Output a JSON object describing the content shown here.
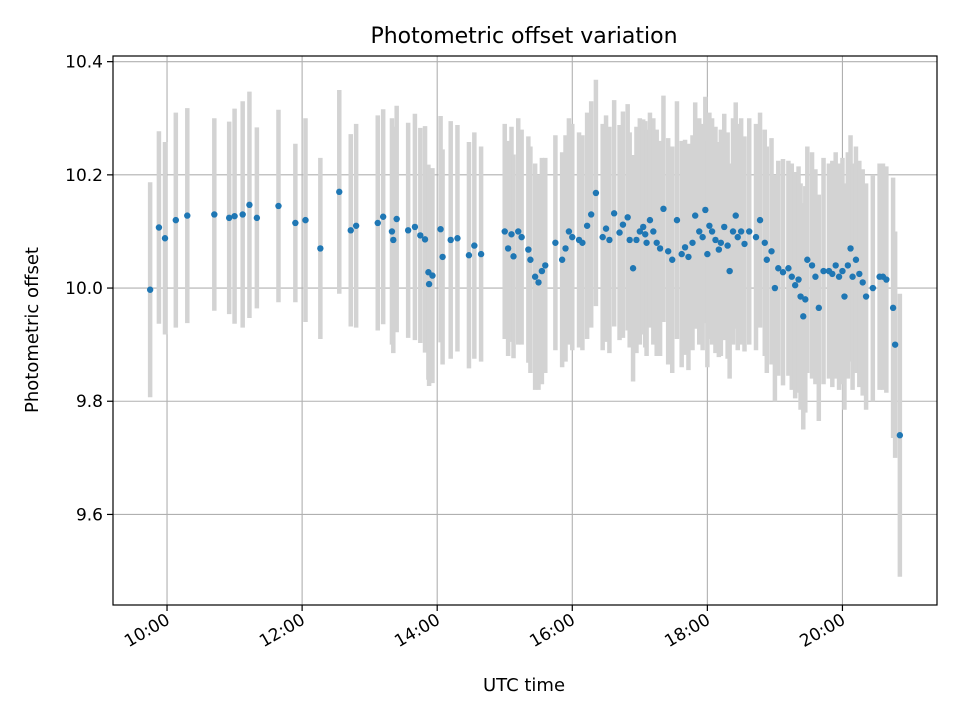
{
  "chart_data": {
    "type": "scatter",
    "title": "Photometric offset variation",
    "xlabel": "UTC time",
    "ylabel": "Photometric offset",
    "x_unit": "hours UTC",
    "xlim": [
      9.2,
      21.4
    ],
    "ylim": [
      9.44,
      10.41
    ],
    "grid": true,
    "legend": "none",
    "x_ticks": [
      {
        "value": 10,
        "label": "10:00"
      },
      {
        "value": 12,
        "label": "12:00"
      },
      {
        "value": 14,
        "label": "14:00"
      },
      {
        "value": 16,
        "label": "16:00"
      },
      {
        "value": 18,
        "label": "18:00"
      },
      {
        "value": 20,
        "label": "20:00"
      }
    ],
    "y_ticks": [
      {
        "value": 9.6,
        "label": "9.6"
      },
      {
        "value": 9.8,
        "label": "9.8"
      },
      {
        "value": 10.0,
        "label": "10.0"
      },
      {
        "value": 10.2,
        "label": "10.2"
      },
      {
        "value": 10.4,
        "label": "10.4"
      }
    ],
    "colors": {
      "points": "#1f77b4",
      "errorbars": "#d3d3d3",
      "grid": "#b0b0b0"
    },
    "series": [
      {
        "name": "offset",
        "points": [
          [
            9.75,
            9.997,
            0.19
          ],
          [
            9.88,
            10.107,
            0.17
          ],
          [
            9.97,
            10.088,
            0.17
          ],
          [
            10.13,
            10.12,
            0.19
          ],
          [
            10.3,
            10.128,
            0.19
          ],
          [
            10.7,
            10.13,
            0.17
          ],
          [
            10.92,
            10.124,
            0.17
          ],
          [
            11.0,
            10.127,
            0.19
          ],
          [
            11.12,
            10.13,
            0.2
          ],
          [
            11.22,
            10.147,
            0.2
          ],
          [
            11.33,
            10.124,
            0.16
          ],
          [
            11.65,
            10.145,
            0.17
          ],
          [
            11.9,
            10.115,
            0.14
          ],
          [
            12.05,
            10.12,
            0.18
          ],
          [
            12.27,
            10.07,
            0.16
          ],
          [
            12.55,
            10.17,
            0.18
          ],
          [
            12.72,
            10.102,
            0.17
          ],
          [
            12.8,
            10.11,
            0.18
          ],
          [
            13.12,
            10.115,
            0.19
          ],
          [
            13.2,
            10.126,
            0.19
          ],
          [
            13.33,
            10.1,
            0.2
          ],
          [
            13.35,
            10.085,
            0.2
          ],
          [
            13.4,
            10.122,
            0.2
          ],
          [
            13.57,
            10.102,
            0.19
          ],
          [
            13.67,
            10.108,
            0.2
          ],
          [
            13.75,
            10.093,
            0.19
          ],
          [
            13.82,
            10.086,
            0.2
          ],
          [
            13.87,
            10.028,
            0.19
          ],
          [
            13.93,
            10.022,
            0.19
          ],
          [
            13.88,
            10.007,
            0.18
          ],
          [
            14.05,
            10.104,
            0.2
          ],
          [
            14.08,
            10.055,
            0.19
          ],
          [
            14.2,
            10.085,
            0.21
          ],
          [
            14.3,
            10.088,
            0.2
          ],
          [
            14.47,
            10.058,
            0.2
          ],
          [
            14.55,
            10.075,
            0.2
          ],
          [
            14.65,
            10.06,
            0.19
          ],
          [
            15.0,
            10.1,
            0.19
          ],
          [
            15.05,
            10.07,
            0.19
          ],
          [
            15.1,
            10.095,
            0.19
          ],
          [
            15.13,
            10.056,
            0.18
          ],
          [
            15.2,
            10.1,
            0.2
          ],
          [
            15.25,
            10.09,
            0.19
          ],
          [
            15.35,
            10.068,
            0.2
          ],
          [
            15.38,
            10.05,
            0.2
          ],
          [
            15.45,
            10.02,
            0.2
          ],
          [
            15.5,
            10.01,
            0.19
          ],
          [
            15.55,
            10.03,
            0.2
          ],
          [
            15.6,
            10.04,
            0.19
          ],
          [
            15.75,
            10.08,
            0.19
          ],
          [
            15.85,
            10.05,
            0.19
          ],
          [
            15.9,
            10.07,
            0.2
          ],
          [
            15.95,
            10.1,
            0.2
          ],
          [
            16.0,
            10.09,
            0.2
          ],
          [
            16.1,
            10.085,
            0.19
          ],
          [
            16.15,
            10.08,
            0.19
          ],
          [
            16.22,
            10.11,
            0.2
          ],
          [
            16.28,
            10.13,
            0.2
          ],
          [
            16.35,
            10.168,
            0.2
          ],
          [
            16.45,
            10.09,
            0.2
          ],
          [
            16.5,
            10.105,
            0.2
          ],
          [
            16.55,
            10.085,
            0.2
          ],
          [
            16.62,
            10.132,
            0.2
          ],
          [
            16.7,
            10.098,
            0.19
          ],
          [
            16.75,
            10.112,
            0.2
          ],
          [
            16.82,
            10.125,
            0.2
          ],
          [
            16.85,
            10.085,
            0.19
          ],
          [
            16.9,
            10.035,
            0.2
          ],
          [
            16.95,
            10.085,
            0.2
          ],
          [
            17.0,
            10.1,
            0.2
          ],
          [
            17.05,
            10.108,
            0.19
          ],
          [
            17.08,
            10.095,
            0.2
          ],
          [
            17.1,
            10.08,
            0.2
          ],
          [
            17.15,
            10.12,
            0.19
          ],
          [
            17.2,
            10.1,
            0.2
          ],
          [
            17.25,
            10.08,
            0.2
          ],
          [
            17.3,
            10.07,
            0.19
          ],
          [
            17.35,
            10.14,
            0.2
          ],
          [
            17.42,
            10.065,
            0.2
          ],
          [
            17.48,
            10.05,
            0.2
          ],
          [
            17.55,
            10.12,
            0.21
          ],
          [
            17.62,
            10.06,
            0.2
          ],
          [
            17.67,
            10.072,
            0.19
          ],
          [
            17.72,
            10.055,
            0.2
          ],
          [
            17.78,
            10.08,
            0.19
          ],
          [
            17.82,
            10.128,
            0.2
          ],
          [
            17.88,
            10.1,
            0.2
          ],
          [
            17.93,
            10.09,
            0.2
          ],
          [
            17.97,
            10.138,
            0.2
          ],
          [
            18.0,
            10.06,
            0.2
          ],
          [
            18.03,
            10.11,
            0.2
          ],
          [
            18.07,
            10.1,
            0.2
          ],
          [
            18.12,
            10.085,
            0.2
          ],
          [
            18.17,
            10.068,
            0.19
          ],
          [
            18.2,
            10.08,
            0.2
          ],
          [
            18.25,
            10.108,
            0.2
          ],
          [
            18.3,
            10.075,
            0.2
          ],
          [
            18.33,
            10.03,
            0.19
          ],
          [
            18.38,
            10.1,
            0.2
          ],
          [
            18.42,
            10.128,
            0.2
          ],
          [
            18.45,
            10.09,
            0.2
          ],
          [
            18.5,
            10.1,
            0.2
          ],
          [
            18.55,
            10.078,
            0.19
          ],
          [
            18.62,
            10.1,
            0.2
          ],
          [
            18.72,
            10.09,
            0.2
          ],
          [
            18.78,
            10.12,
            0.19
          ],
          [
            18.85,
            10.08,
            0.2
          ],
          [
            18.88,
            10.05,
            0.2
          ],
          [
            18.95,
            10.065,
            0.2
          ],
          [
            19.0,
            10.0,
            0.2
          ],
          [
            19.05,
            10.035,
            0.19
          ],
          [
            19.12,
            10.028,
            0.2
          ],
          [
            19.2,
            10.035,
            0.19
          ],
          [
            19.25,
            10.02,
            0.2
          ],
          [
            19.3,
            10.005,
            0.2
          ],
          [
            19.35,
            10.015,
            0.2
          ],
          [
            19.38,
            9.985,
            0.2
          ],
          [
            19.42,
            9.95,
            0.2
          ],
          [
            19.45,
            9.98,
            0.2
          ],
          [
            19.48,
            10.05,
            0.2
          ],
          [
            19.55,
            10.04,
            0.2
          ],
          [
            19.6,
            10.02,
            0.19
          ],
          [
            19.65,
            9.965,
            0.2
          ],
          [
            19.72,
            10.03,
            0.2
          ],
          [
            19.8,
            10.03,
            0.19
          ],
          [
            19.85,
            10.025,
            0.2
          ],
          [
            19.9,
            10.04,
            0.2
          ],
          [
            19.95,
            10.02,
            0.2
          ],
          [
            20.0,
            10.03,
            0.2
          ],
          [
            20.03,
            9.985,
            0.2
          ],
          [
            20.08,
            10.04,
            0.2
          ],
          [
            20.12,
            10.07,
            0.2
          ],
          [
            20.15,
            10.02,
            0.2
          ],
          [
            20.2,
            10.05,
            0.2
          ],
          [
            20.25,
            10.025,
            0.2
          ],
          [
            20.3,
            10.01,
            0.2
          ],
          [
            20.35,
            9.985,
            0.2
          ],
          [
            20.45,
            10.0,
            0.2
          ],
          [
            20.55,
            10.02,
            0.2
          ],
          [
            20.6,
            10.02,
            0.2
          ],
          [
            20.65,
            10.015,
            0.2
          ],
          [
            20.75,
            9.965,
            0.23
          ],
          [
            20.78,
            9.9,
            0.2
          ],
          [
            20.85,
            9.74,
            0.25
          ]
        ]
      }
    ]
  }
}
